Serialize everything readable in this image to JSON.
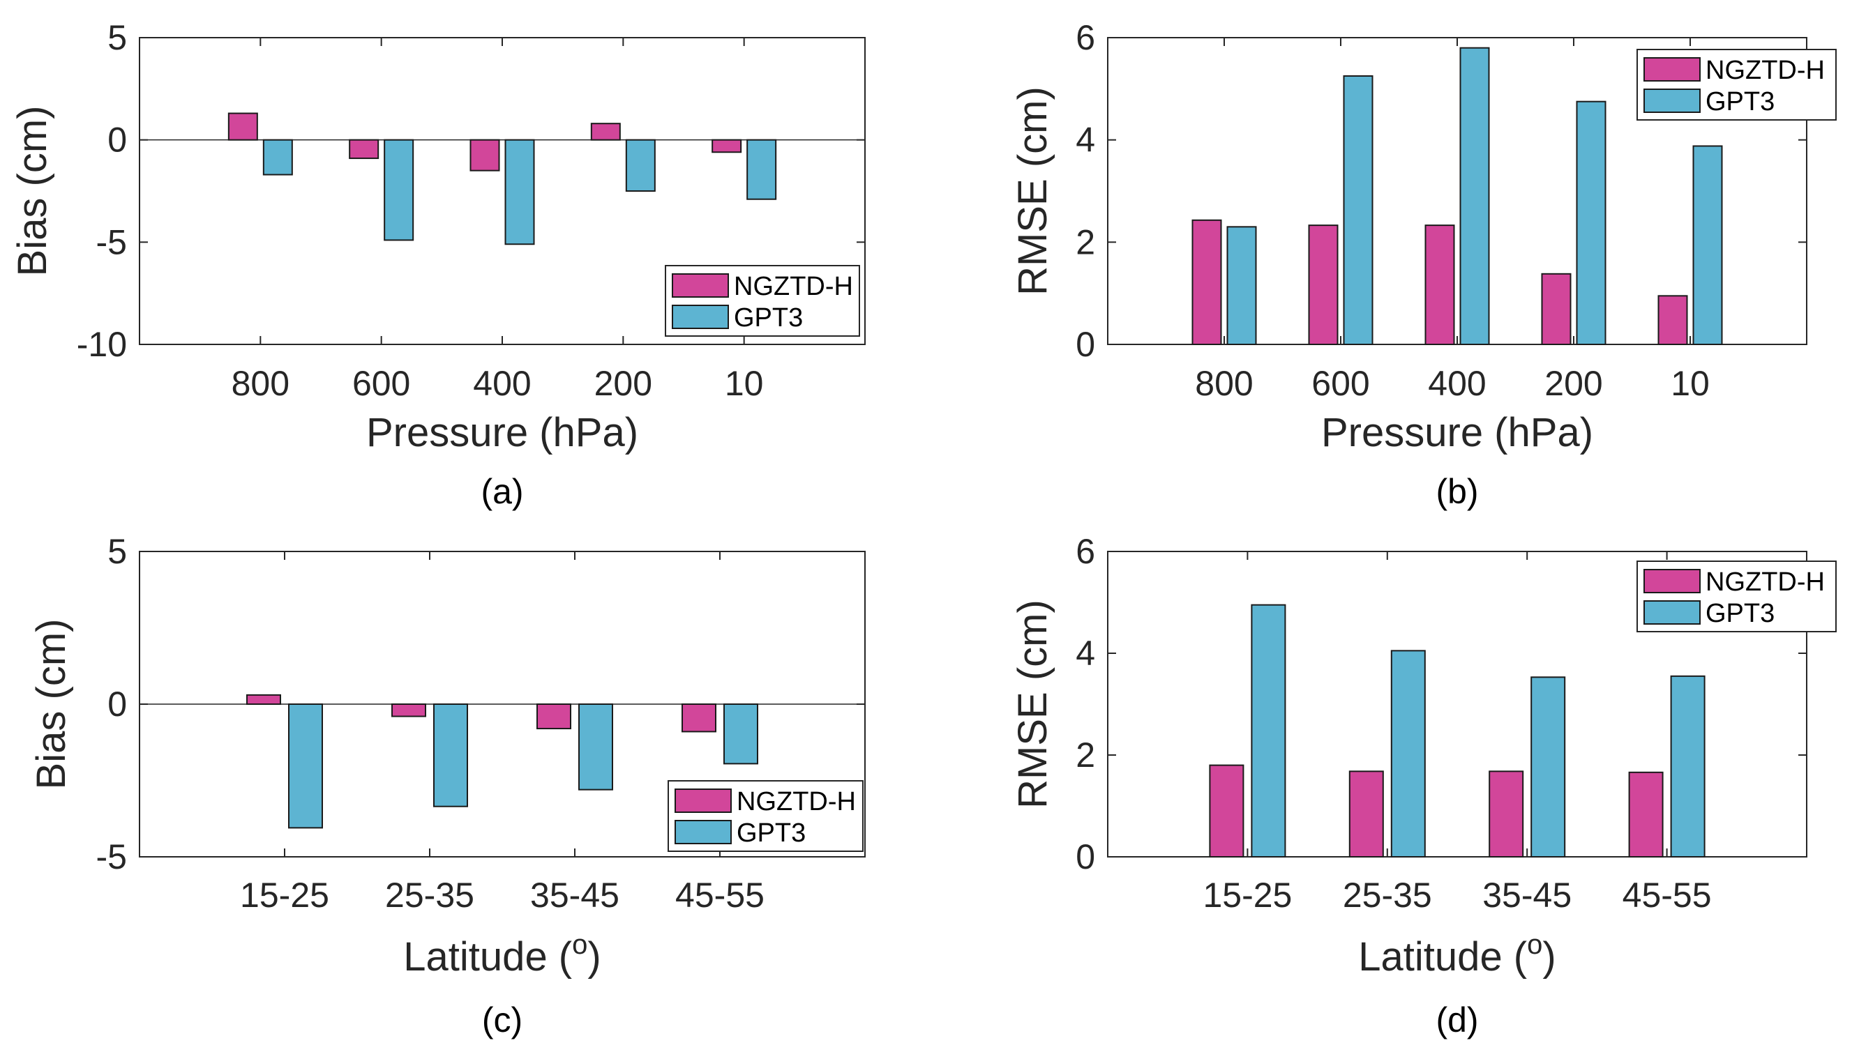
{
  "colors": {
    "ngztd": "#D2469A",
    "gpt3": "#5DB4D2",
    "axis": "#262626"
  },
  "chart_data": [
    {
      "id": "a",
      "type": "bar",
      "panel_label": "(a)",
      "xlabel": "Pressure (hPa)",
      "ylabel": "Bias (cm)",
      "categories": [
        "800",
        "600",
        "400",
        "200",
        "10"
      ],
      "ylim": [
        -10,
        5
      ],
      "yticks": [
        5,
        0,
        -5,
        -10
      ],
      "xlim": [
        0,
        6
      ],
      "grid": false,
      "legend_position": "bottom-right",
      "series": [
        {
          "name": "NGZTD-H",
          "values": [
            1.3,
            -0.9,
            -1.5,
            0.8,
            -0.6
          ]
        },
        {
          "name": "GPT3",
          "values": [
            -1.7,
            -4.9,
            -5.1,
            -2.5,
            -2.9
          ]
        }
      ]
    },
    {
      "id": "b",
      "type": "bar",
      "panel_label": "(b)",
      "xlabel": "Pressure (hPa)",
      "ylabel": "RMSE (cm)",
      "categories": [
        "800",
        "600",
        "400",
        "200",
        "10"
      ],
      "ylim": [
        0,
        6
      ],
      "yticks": [
        6,
        4,
        2,
        0
      ],
      "xlim": [
        0,
        6
      ],
      "grid": false,
      "legend_position": "top-right",
      "series": [
        {
          "name": "NGZTD-H",
          "values": [
            2.43,
            2.33,
            2.33,
            1.38,
            0.95
          ]
        },
        {
          "name": "GPT3",
          "values": [
            2.3,
            5.25,
            5.8,
            4.75,
            3.88
          ]
        }
      ]
    },
    {
      "id": "c",
      "type": "bar",
      "panel_label": "(c)",
      "xlabel_main": "Latitude (",
      "xlabel_sup": "o",
      "xlabel_end": ")",
      "ylabel": "Bias (cm)",
      "categories": [
        "15-25",
        "25-35",
        "35-45",
        "45-55"
      ],
      "ylim": [
        -5,
        5
      ],
      "yticks": [
        5,
        0,
        -5
      ],
      "xlim": [
        0,
        5
      ],
      "grid": false,
      "legend_position": "bottom-right",
      "series": [
        {
          "name": "NGZTD-H",
          "values": [
            0.3,
            -0.4,
            -0.8,
            -0.9
          ]
        },
        {
          "name": "GPT3",
          "values": [
            -4.05,
            -3.35,
            -2.8,
            -1.95
          ]
        }
      ]
    },
    {
      "id": "d",
      "type": "bar",
      "panel_label": "(d)",
      "xlabel_main": "Latitude (",
      "xlabel_sup": "o",
      "xlabel_end": ")",
      "ylabel": "RMSE (cm)",
      "categories": [
        "15-25",
        "25-35",
        "35-45",
        "45-55"
      ],
      "ylim": [
        0,
        6
      ],
      "yticks": [
        6,
        4,
        2,
        0
      ],
      "xlim": [
        0,
        5
      ],
      "grid": false,
      "legend_position": "top-right",
      "series": [
        {
          "name": "NGZTD-H",
          "values": [
            1.8,
            1.68,
            1.68,
            1.66
          ]
        },
        {
          "name": "GPT3",
          "values": [
            4.95,
            4.05,
            3.53,
            3.55
          ]
        }
      ]
    }
  ]
}
